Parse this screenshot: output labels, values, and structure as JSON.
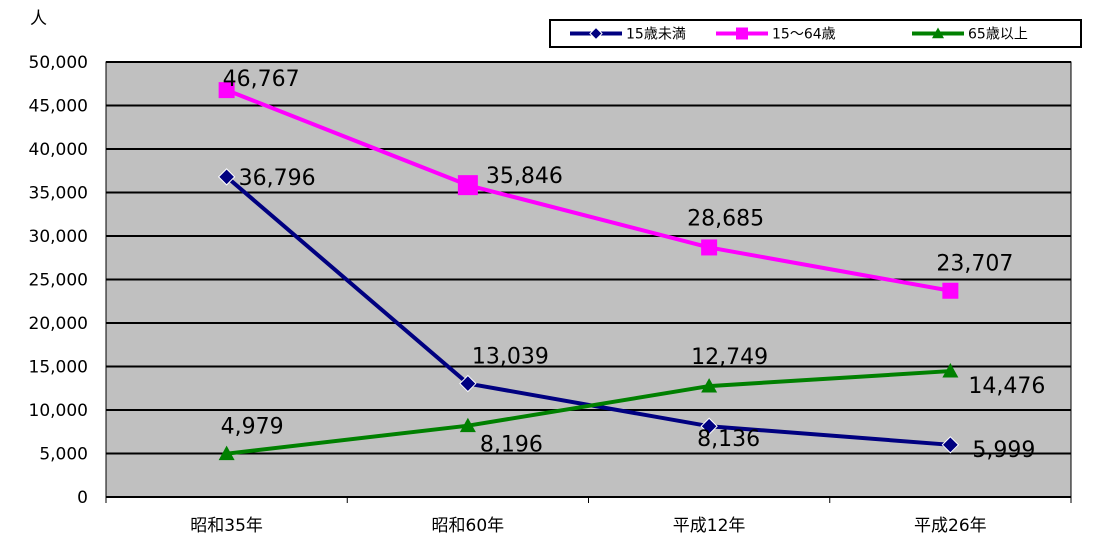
{
  "chart_data": {
    "type": "line",
    "yunit": "人",
    "categories": [
      "昭和35年",
      "昭和60年",
      "平成12年",
      "平成26年"
    ],
    "ylim": [
      0,
      50000
    ],
    "yticks": [
      "0",
      "5,000",
      "10,000",
      "15,000",
      "20,000",
      "25,000",
      "30,000",
      "35,000",
      "40,000",
      "45,000",
      "50,000"
    ],
    "grid": true,
    "legend_position": "top-right",
    "series": [
      {
        "name": "15歳未満",
        "values": [
          36796,
          13039,
          8136,
          5999
        ],
        "labels": [
          "36,796",
          "13,039",
          "8,136",
          "5,999"
        ],
        "color": "#000080",
        "marker": "diamond"
      },
      {
        "name": "15〜64歳",
        "values": [
          46767,
          35846,
          28685,
          23707
        ],
        "labels": [
          "46,767",
          "35,846",
          "28,685",
          "23,707"
        ],
        "color": "#ff00ff",
        "marker": "square"
      },
      {
        "name": "65歳以上",
        "values": [
          4979,
          8196,
          12749,
          14476
        ],
        "labels": [
          "4,979",
          "8,196",
          "12,749",
          "14,476"
        ],
        "color": "#008000",
        "marker": "triangle"
      }
    ]
  }
}
